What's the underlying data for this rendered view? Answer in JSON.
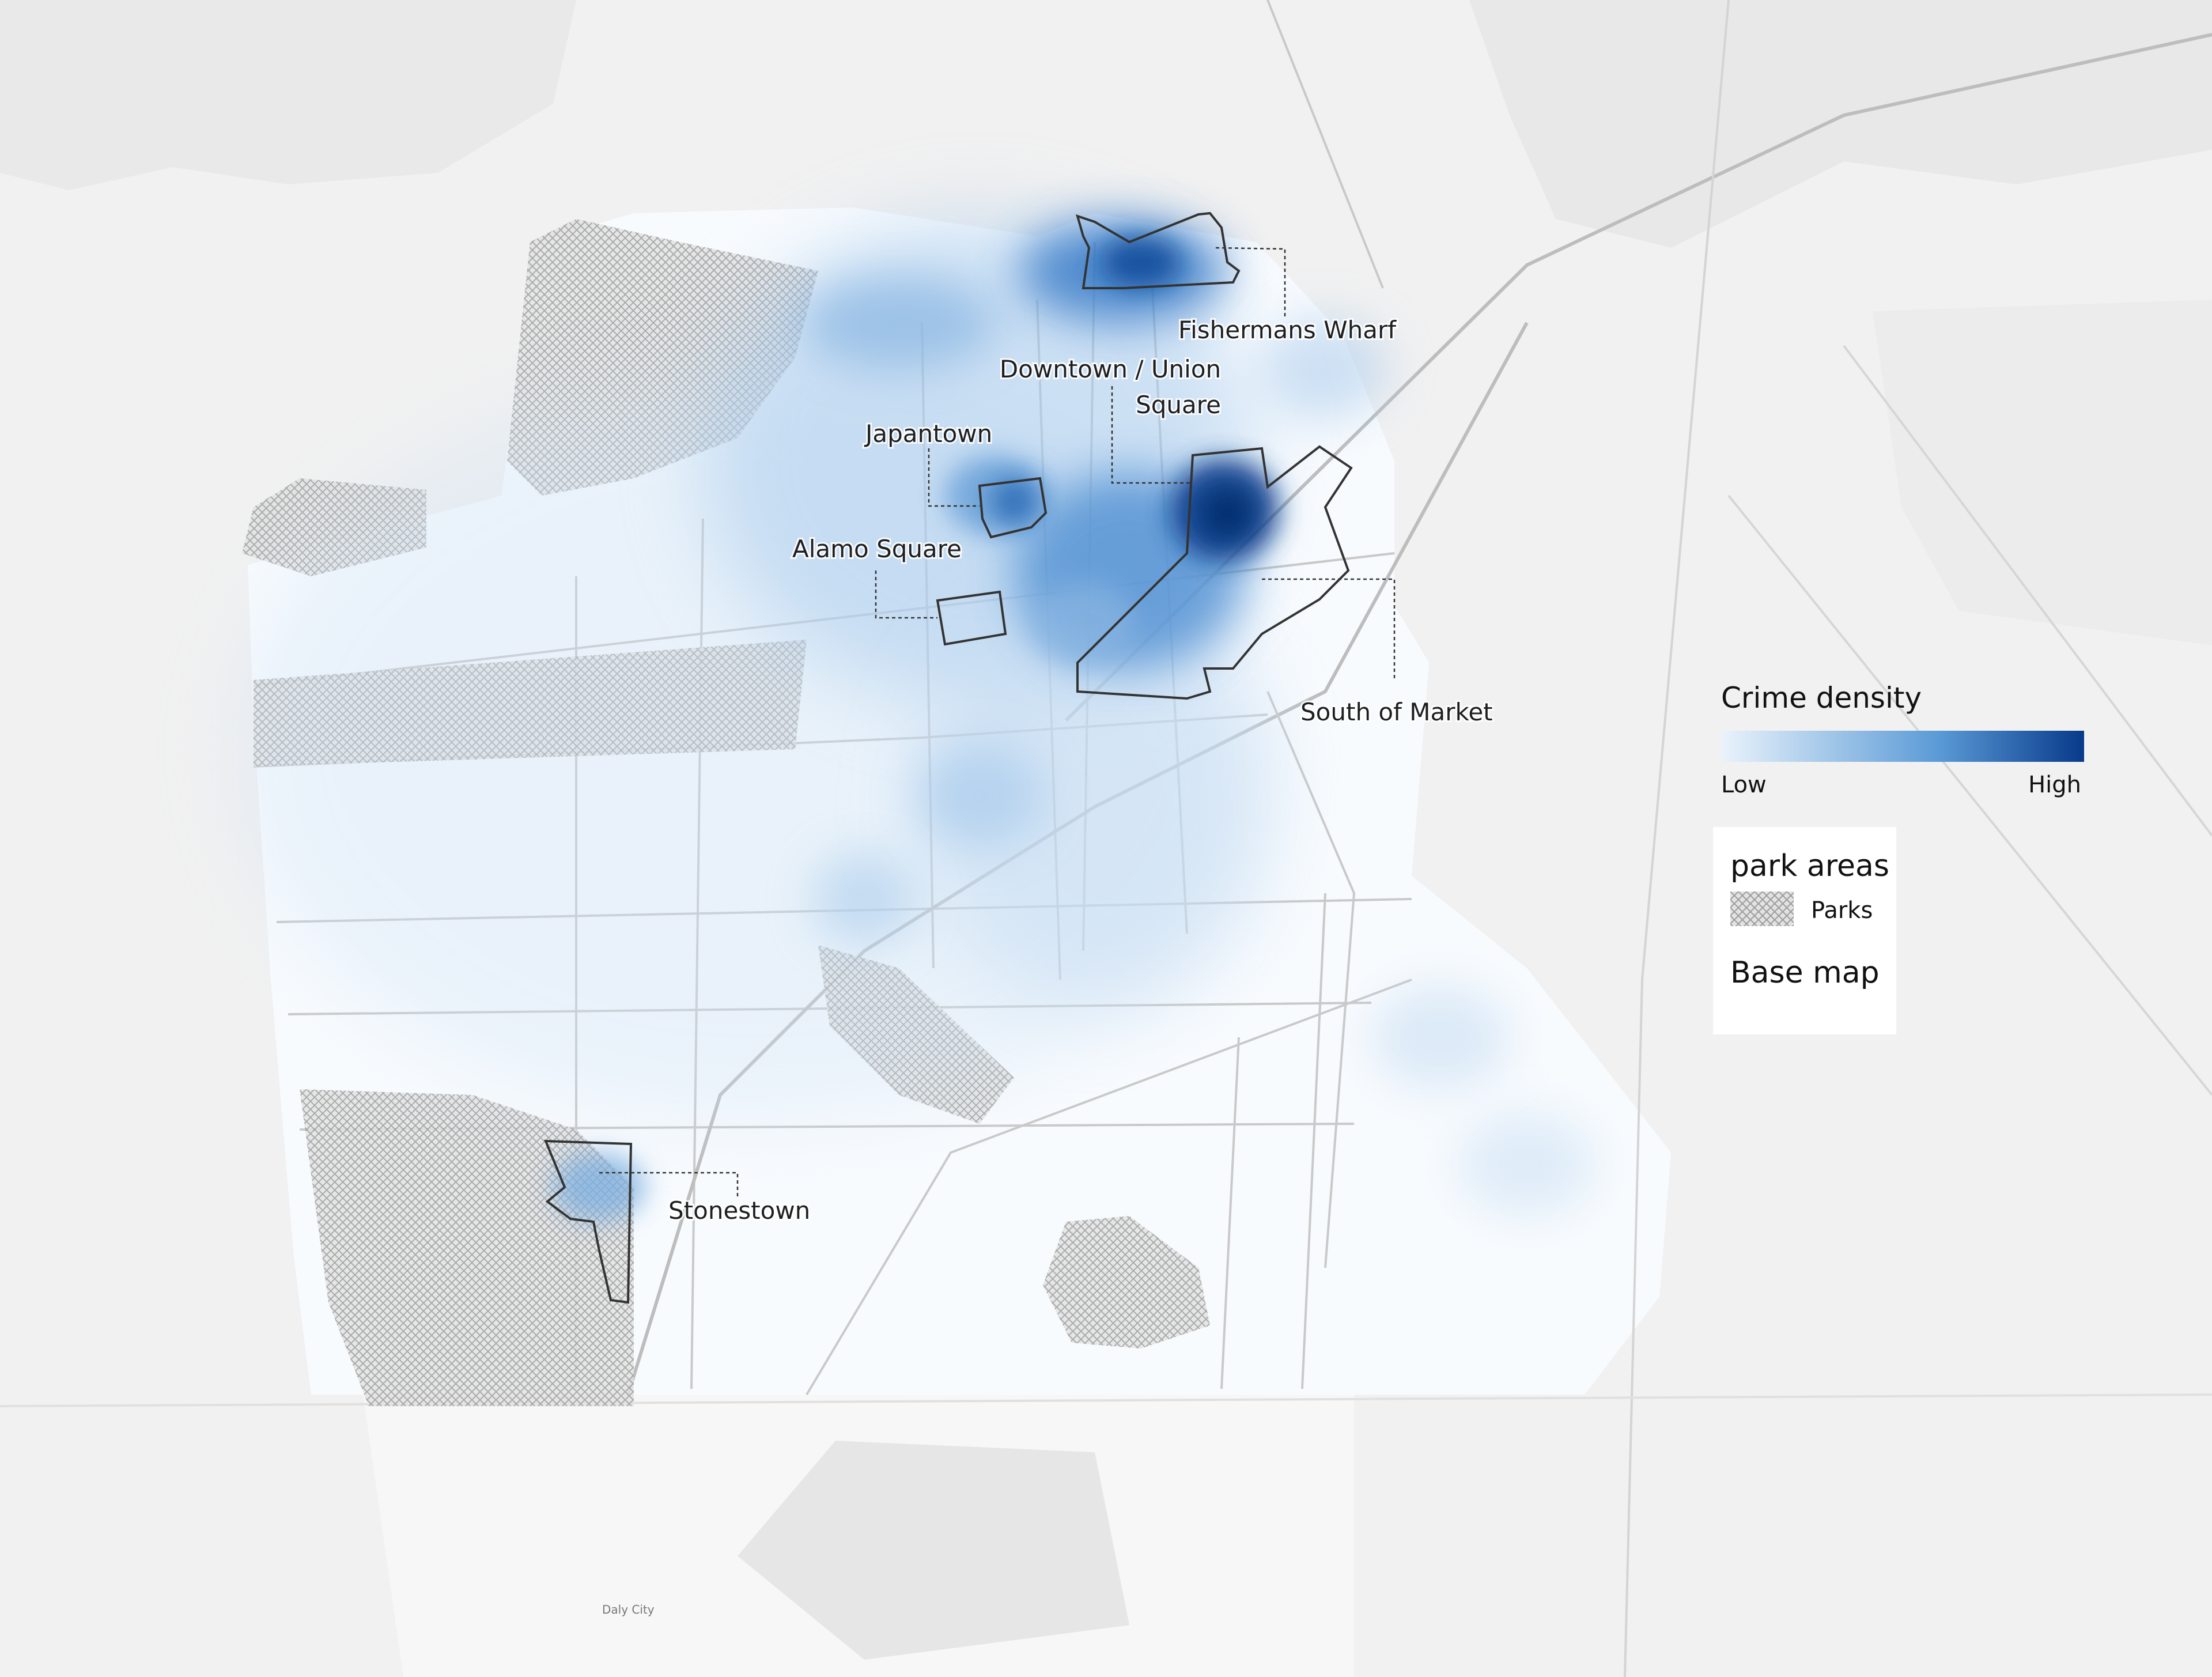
{
  "map": {
    "neighborhoods": [
      {
        "id": "fishermans-wharf",
        "label": "Fishermans Wharf"
      },
      {
        "id": "downtown-union-square",
        "label_line1": "Downtown / Union",
        "label_line2": "Square"
      },
      {
        "id": "japantown",
        "label": "Japantown"
      },
      {
        "id": "alamo-square",
        "label": "Alamo Square"
      },
      {
        "id": "south-of-market",
        "label": "South of Market"
      },
      {
        "id": "stonestown",
        "label": "Stonestown"
      }
    ],
    "small_labels": [
      "Daly City"
    ]
  },
  "legend": {
    "density_title": "Crime density",
    "low_label": "Low",
    "high_label": "High",
    "colors": {
      "low": "#eaf3fb",
      "mid": "#5a9ad6",
      "high": "#083a8a"
    },
    "layers_title": "park areas",
    "parks_label": "Parks",
    "basemap_label": "Base map"
  },
  "colors": {
    "background": "#f1f1f1",
    "land": "#ffffff",
    "park_pattern": "#9c9c9c",
    "outline": "#333333"
  }
}
